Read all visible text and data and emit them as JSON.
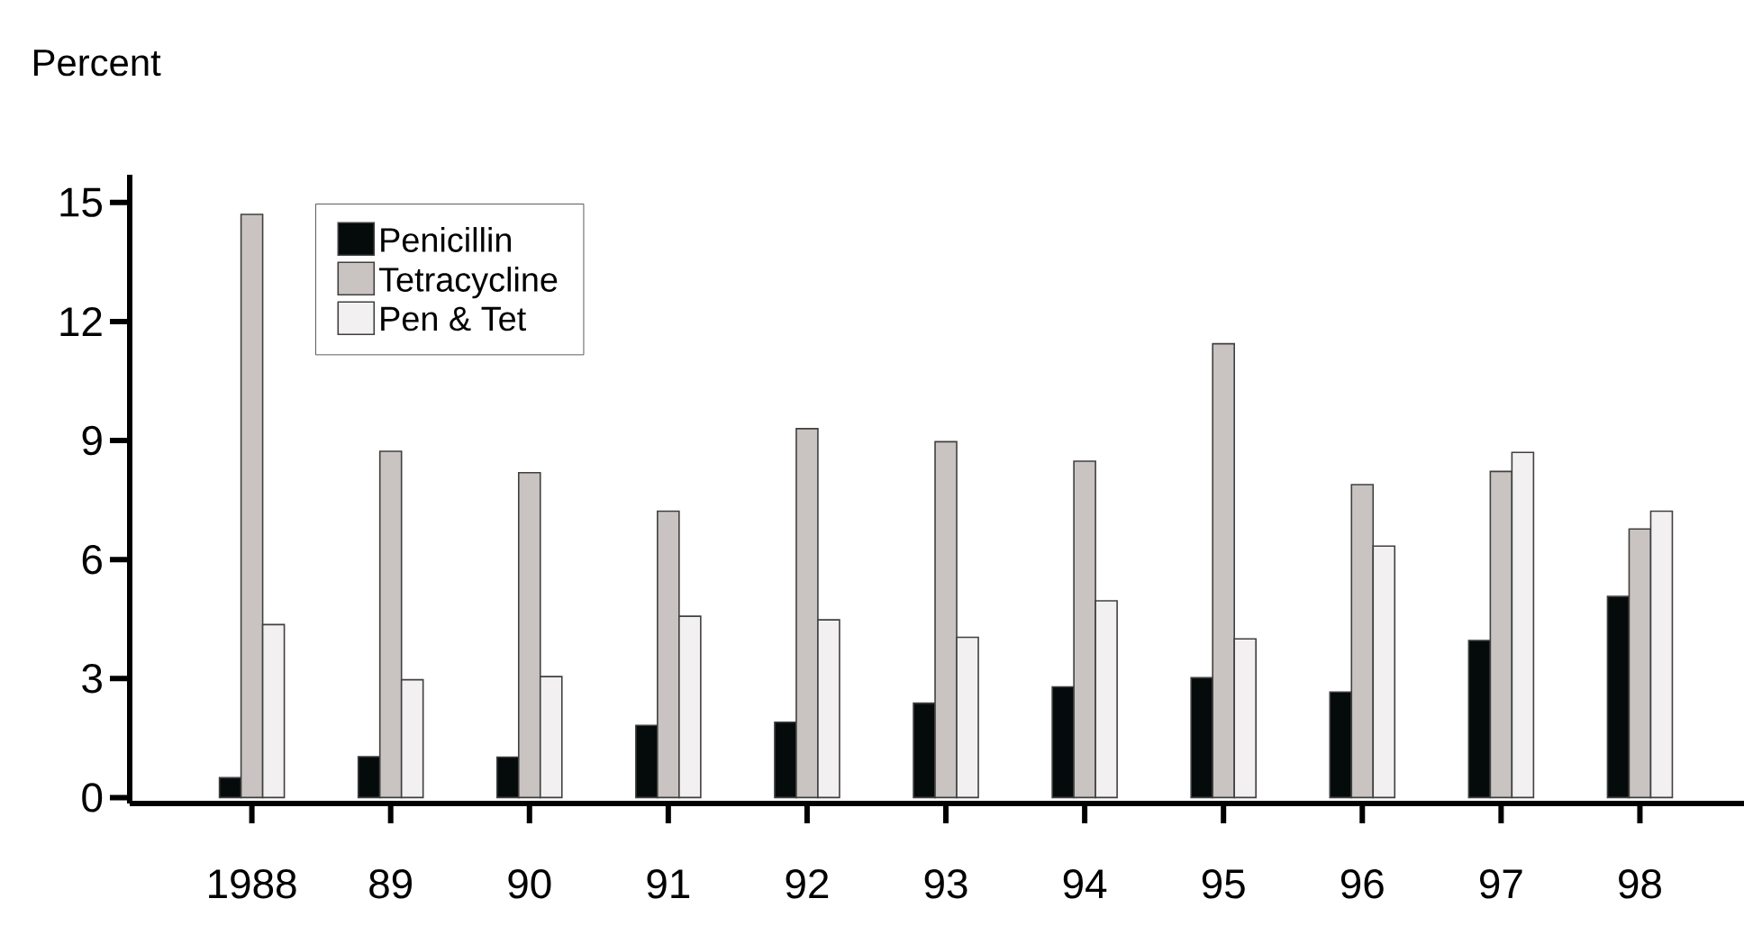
{
  "chart_data": {
    "type": "bar",
    "ylabel": "Percent",
    "categories": [
      "1988",
      "89",
      "90",
      "91",
      "92",
      "93",
      "94",
      "95",
      "96",
      "97",
      "98"
    ],
    "series": [
      {
        "name": "Penicillin",
        "color": "#050a0b",
        "values": [
          0.5,
          1.03,
          1.02,
          1.82,
          1.9,
          2.38,
          2.79,
          3.02,
          2.66,
          3.96,
          5.07
        ]
      },
      {
        "name": "Tetracycline",
        "color": "#c9c4c1",
        "values": [
          14.7,
          8.73,
          8.19,
          7.22,
          9.3,
          8.97,
          8.48,
          11.44,
          7.89,
          8.22,
          6.77
        ]
      },
      {
        "name": "Pen & Tet",
        "color": "#f2f0f1",
        "values": [
          4.36,
          2.97,
          3.05,
          4.57,
          4.48,
          4.04,
          4.96,
          4.0,
          6.34,
          8.7,
          7.22
        ]
      }
    ],
    "ylim": [
      -0.15,
      15.7
    ],
    "yticks": [
      0,
      3,
      6,
      9,
      12,
      15
    ],
    "legend": "top left",
    "grid": false
  }
}
